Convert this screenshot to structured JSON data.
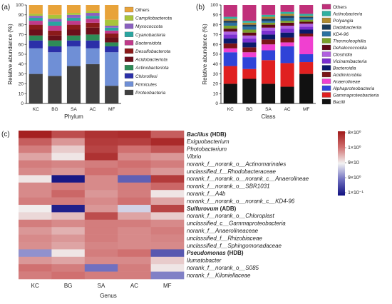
{
  "panel_labels": {
    "a": "(a)",
    "b": "(b)",
    "c": "(c)"
  },
  "chart_data": [
    {
      "type": "bar",
      "stacked": true,
      "panel": "(a)",
      "categories": [
        "KC",
        "BG",
        "SA",
        "AC",
        "MF"
      ],
      "xlabel": "Phylum",
      "ylabel": "Relative abundance (%)",
      "ylim": [
        0,
        100
      ],
      "yticks": [
        "0",
        "10",
        "20",
        "30",
        "40",
        "50",
        "60",
        "70",
        "80",
        "90",
        "100"
      ],
      "legend_position": "right",
      "series": [
        {
          "name": "Proteobacteria",
          "color": "#404040",
          "values": [
            30,
            28,
            38,
            40,
            18
          ]
        },
        {
          "name": "Firmicutes",
          "color": "#6f8fd6",
          "values": [
            26,
            24,
            20,
            16,
            34
          ]
        },
        {
          "name": "Chloroflexi",
          "color": "#2b2fa8",
          "values": [
            8,
            6,
            6,
            8,
            6
          ]
        },
        {
          "name": "Actinobacteriota",
          "color": "#2e8b57",
          "values": [
            5,
            6,
            5,
            6,
            4
          ]
        },
        {
          "name": "Acidobacteriota",
          "color": "#6b0f1a",
          "values": [
            6,
            5,
            6,
            7,
            5
          ]
        },
        {
          "name": "Desulfobacterota",
          "color": "#8b1a1a",
          "values": [
            5,
            5,
            5,
            5,
            4
          ]
        },
        {
          "name": "Bacteroidota",
          "color": "#c03a8a",
          "values": [
            4,
            5,
            4,
            4,
            3
          ]
        },
        {
          "name": "Cyanobacteria",
          "color": "#2aa5a0",
          "values": [
            3,
            4,
            3,
            3,
            3
          ]
        },
        {
          "name": "Myxococcota",
          "color": "#8a60c0",
          "values": [
            2,
            3,
            3,
            3,
            2
          ]
        },
        {
          "name": "Campilobacterota",
          "color": "#a8c43a",
          "values": [
            2,
            4,
            2,
            2,
            6
          ]
        },
        {
          "name": "Others",
          "color": "#e8a33a",
          "values": [
            9,
            10,
            8,
            6,
            15
          ]
        }
      ]
    },
    {
      "type": "bar",
      "stacked": true,
      "panel": "(b)",
      "categories": [
        "KC",
        "BG",
        "SA",
        "AC",
        "MF"
      ],
      "xlabel": "Class",
      "ylabel": "Relative abundance (%)",
      "ylim": [
        0,
        100
      ],
      "yticks": [
        "0",
        "10",
        "20",
        "30",
        "40",
        "50",
        "60",
        "70",
        "80",
        "90",
        "100"
      ],
      "legend_position": "right",
      "series": [
        {
          "name": "Bacilli",
          "color": "#111111",
          "values": [
            20,
            25,
            20,
            17,
            30
          ]
        },
        {
          "name": "Gammaproteobacteria",
          "color": "#e02020",
          "values": [
            18,
            10,
            24,
            24,
            12
          ]
        },
        {
          "name": "Alphaproteobacteria",
          "color": "#2f43d8",
          "values": [
            14,
            12,
            10,
            17,
            8
          ]
        },
        {
          "name": "Anaerolineae",
          "color": "#f040d0",
          "values": [
            4,
            5,
            6,
            4,
            18
          ]
        },
        {
          "name": "Acidimicrobiia",
          "color": "#7a1518",
          "values": [
            5,
            5,
            5,
            5,
            3
          ]
        },
        {
          "name": "Bacteroidia",
          "color": "#0b1a6b",
          "values": [
            5,
            5,
            5,
            5,
            4
          ]
        },
        {
          "name": "Vicinamibacteria",
          "color": "#7b2fd0",
          "values": [
            4,
            4,
            4,
            4,
            3
          ]
        },
        {
          "name": "Clostridia",
          "color": "#b060e0",
          "values": [
            3,
            3,
            3,
            3,
            3
          ]
        },
        {
          "name": "Dehalococcoidia",
          "color": "#600818",
          "values": [
            3,
            3,
            3,
            3,
            2
          ]
        },
        {
          "name": "Thermoleophilia",
          "color": "#7aa02a",
          "values": [
            3,
            3,
            2,
            2,
            2
          ]
        },
        {
          "name": "KD4-96",
          "color": "#2a70a0",
          "values": [
            3,
            3,
            2,
            3,
            2
          ]
        },
        {
          "name": "Dadabacteriia",
          "color": "#1a3a5a",
          "values": [
            2,
            2,
            2,
            2,
            1
          ]
        },
        {
          "name": "Polyangia",
          "color": "#b08a30",
          "values": [
            2,
            2,
            2,
            2,
            1
          ]
        },
        {
          "name": "Actinobacteria",
          "color": "#30b0a0",
          "values": [
            2,
            2,
            2,
            2,
            2
          ]
        },
        {
          "name": "Others",
          "color": "#c0307a",
          "values": [
            12,
            16,
            10,
            7,
            9
          ]
        }
      ]
    },
    {
      "type": "heatmap",
      "panel": "(c)",
      "columns": [
        "KC",
        "BG",
        "SA",
        "AC",
        "MF"
      ],
      "xlabel": "Genus",
      "colorbar": {
        "labels": [
          "8×10⁰",
          "1×10⁰",
          "9×10",
          "9×10⁰",
          "1×10⁻¹"
        ],
        "colors": [
          "#a01818",
          "#d07070",
          "#f2f2f2",
          "#7070c0",
          "#101080"
        ]
      },
      "rows": [
        {
          "name": "Bacillus",
          "suffix": " (HDB)",
          "bold": true,
          "values": [
            0.95,
            0.7,
            0.85,
            0.88,
            0.6
          ]
        },
        {
          "name": "Exiguobacterium",
          "suffix": "",
          "bold": false,
          "values": [
            0.6,
            0.35,
            0.8,
            0.78,
            0.9
          ]
        },
        {
          "name": "Photobacterium",
          "suffix": "",
          "bold": false,
          "values": [
            0.45,
            0.15,
            0.75,
            0.5,
            0.65
          ]
        },
        {
          "name": "Vibrio",
          "suffix": "",
          "bold": false,
          "values": [
            0.3,
            0.05,
            0.85,
            0.4,
            0.35
          ]
        },
        {
          "name": "norank_f__norank_o__Actinomarinales",
          "suffix": "",
          "bold": false,
          "values": [
            0.45,
            0.42,
            0.45,
            0.5,
            0.45
          ]
        },
        {
          "name": "unclassified_f__Rhodobacteraceae",
          "suffix": "",
          "bold": false,
          "values": [
            0.4,
            0.35,
            0.5,
            0.45,
            0.35
          ]
        },
        {
          "name": "norank_f__norank_o__norank_c__Anaerolineae",
          "suffix": "",
          "bold": false,
          "values": [
            0.05,
            -0.95,
            0.4,
            -0.5,
            0.8
          ]
        },
        {
          "name": "norank_f__norank_o__SBR1031",
          "suffix": "",
          "bold": false,
          "values": [
            0.4,
            0.45,
            0.4,
            0.45,
            0.55
          ]
        },
        {
          "name": "norank_f__A4b",
          "suffix": "",
          "bold": false,
          "values": [
            0.4,
            0.55,
            0.35,
            0.45,
            0.05
          ]
        },
        {
          "name": "norank_f__norank_o__norank_c__KD4-96",
          "suffix": "",
          "bold": false,
          "values": [
            0.45,
            0.45,
            0.4,
            0.5,
            0.3
          ]
        },
        {
          "name": "Sulfurovum",
          "suffix": " (ADB)",
          "bold": true,
          "values": [
            0.02,
            -0.9,
            0.35,
            -0.1,
            0.75
          ]
        },
        {
          "name": "norank_f__norank_o__Chloroplast",
          "suffix": "",
          "bold": false,
          "values": [
            0.1,
            0.2,
            0.7,
            0.3,
            0.15
          ]
        },
        {
          "name": "unclassified_c__Gammaproteobacteria",
          "suffix": "",
          "bold": false,
          "values": [
            0.45,
            0.4,
            0.45,
            0.45,
            0.4
          ]
        },
        {
          "name": "norank_f__Anaerolineaceae",
          "suffix": "",
          "bold": false,
          "values": [
            0.35,
            0.25,
            0.45,
            0.4,
            0.45
          ]
        },
        {
          "name": "unclassified_f__Rhizobiaceae",
          "suffix": "",
          "bold": false,
          "values": [
            0.4,
            0.35,
            0.45,
            0.4,
            0.42
          ]
        },
        {
          "name": "unclassified_f__Sphingomonadaceae",
          "suffix": "",
          "bold": false,
          "values": [
            0.38,
            0.3,
            0.42,
            0.4,
            0.4
          ]
        },
        {
          "name": "Pseudomonas",
          "suffix": " (HDB)",
          "bold": true,
          "values": [
            -0.3,
            0.05,
            0.45,
            0.5,
            -0.55
          ]
        },
        {
          "name": "Ilumatobacter",
          "suffix": "",
          "bold": false,
          "values": [
            0.35,
            0.3,
            0.4,
            0.4,
            0.15
          ]
        },
        {
          "name": "norank_f__norank_o__S085",
          "suffix": "",
          "bold": false,
          "values": [
            0.5,
            0.45,
            -0.4,
            0.45,
            0.05
          ]
        },
        {
          "name": "norank_f__Kiloniellaceae",
          "suffix": "",
          "bold": false,
          "values": [
            0.45,
            0.5,
            0.45,
            0.45,
            -0.35
          ]
        }
      ]
    }
  ]
}
